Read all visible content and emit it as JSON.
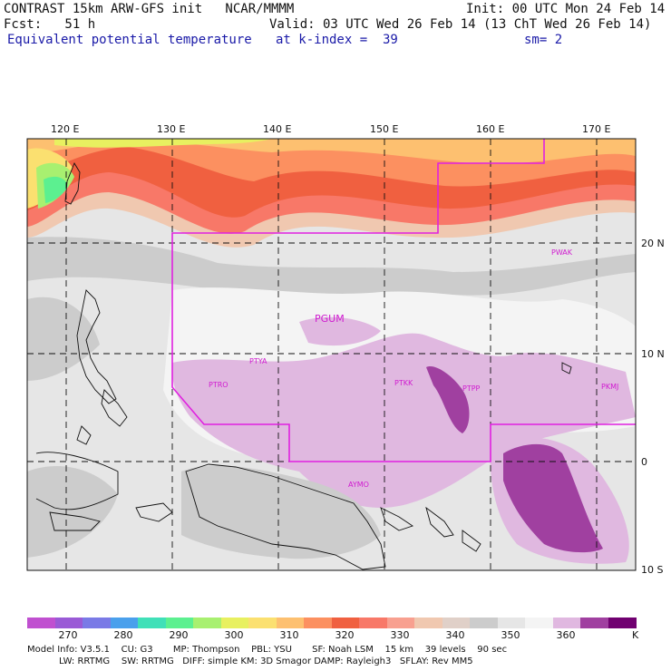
{
  "header": {
    "line1_left": "CONTRAST 15km ARW-GFS init   NCAR/MMMM",
    "line1_right": "Init: 00 UTC Mon 24 Feb 14",
    "line2_left": "Fcst:   51 h",
    "line2_right": "Valid: 03 UTC Wed 26 Feb 14 (13 ChT Wed 26 Feb 14)",
    "field_label": "Equivalent potential temperature",
    "level_label": "at k-index =  39",
    "smooth_label": "sm= 2"
  },
  "map": {
    "lon_labels": [
      "120 E",
      "130 E",
      "140 E",
      "150 E",
      "160 E",
      "170 E"
    ],
    "lat_labels": [
      "20 N",
      "10 N",
      "0",
      "10 S"
    ],
    "stations": [
      "PGUM",
      "PTYA",
      "PTRO",
      "PTKK",
      "PTPP",
      "PKMJ",
      "PWAK",
      "AYMO"
    ],
    "contour_color": "#e020e0"
  },
  "colorbar": {
    "ticks": [
      "270",
      "280",
      "290",
      "300",
      "310",
      "320",
      "330",
      "340",
      "350",
      "360"
    ],
    "unit": "K",
    "colors": [
      "#c050d0",
      "#9a5ad6",
      "#7a7ae6",
      "#4aa0ec",
      "#40e0b8",
      "#5cf090",
      "#a8f070",
      "#e8f060",
      "#fbe070",
      "#fdc070",
      "#fc9060",
      "#f06040",
      "#f87868",
      "#f8a090",
      "#f0c8b0",
      "#e0d0c8",
      "#cccccc",
      "#e6e6e6",
      "#f4f4f4",
      "#e0b8e0",
      "#a040a0",
      "#700070"
    ]
  },
  "footer": {
    "line1": "Model Info: V3.5.1    CU: G3       MP: Thompson    PBL: YSU       SF: Noah LSM    15 km    39 levels    90 sec",
    "line2": "           LW: RRTMG    SW: RRTMG   DIFF: simple KM: 3D Smagor DAMP: Rayleigh3   SFLAY: Rev MM5"
  }
}
